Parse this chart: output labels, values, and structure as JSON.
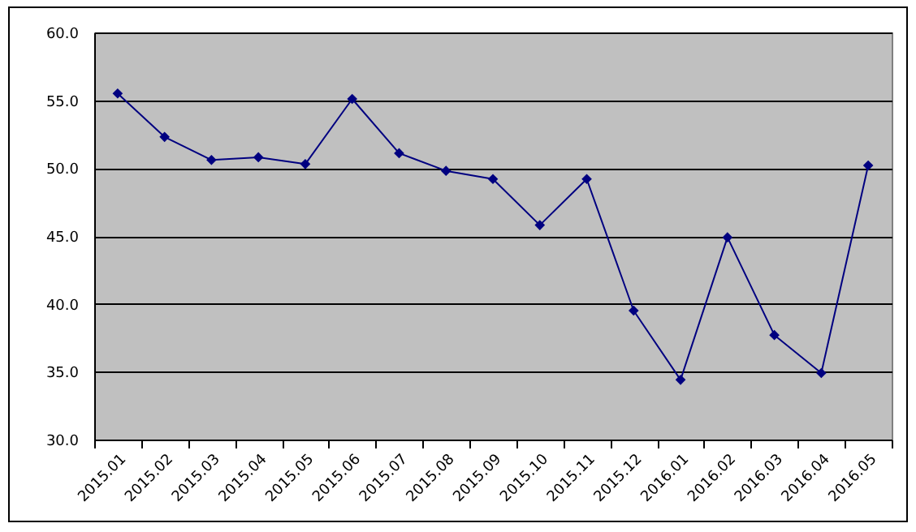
{
  "chart_data": {
    "type": "line",
    "categories": [
      "2015.01",
      "2015.02",
      "2015.03",
      "2015.04",
      "2015.05",
      "2015.06",
      "2015.07",
      "2015.08",
      "2015.09",
      "2015.10",
      "2015.11",
      "2015.12",
      "2016.01",
      "2016.02",
      "2016.03",
      "2016.04",
      "2016.05"
    ],
    "series": [
      {
        "color": "#000080",
        "values": [
          55.5,
          52.3,
          50.6,
          50.8,
          50.3,
          55.1,
          51.1,
          49.8,
          49.2,
          45.8,
          49.2,
          39.5,
          34.4,
          44.9,
          37.7,
          34.9,
          50.2
        ]
      }
    ],
    "ylim": [
      30,
      60
    ],
    "yticks": [
      {
        "value": 30,
        "label": "30.0"
      },
      {
        "value": 35,
        "label": "35.0"
      },
      {
        "value": 40,
        "label": "40.0"
      },
      {
        "value": 45,
        "label": "45.0"
      },
      {
        "value": 50,
        "label": "50.0"
      },
      {
        "value": 55,
        "label": "55.0"
      },
      {
        "value": 60,
        "label": "60.0"
      }
    ],
    "grid": "y",
    "marker": "diamond",
    "line_style": "solid"
  }
}
